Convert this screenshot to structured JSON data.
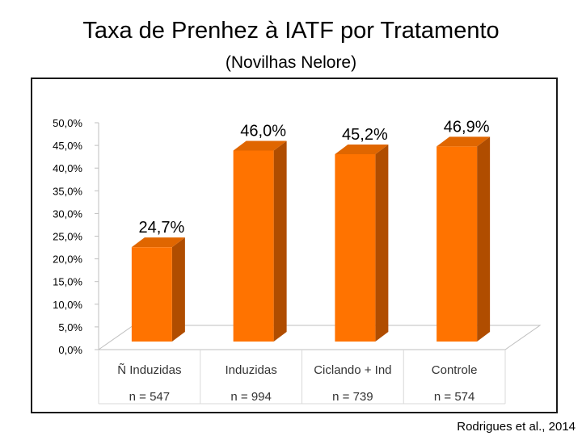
{
  "title": "Taxa de Prenhez à IATF por Tratamento",
  "subtitle": "(Novilhas Nelore)",
  "source": "Rodrigues et al., 2014",
  "chart_data": {
    "type": "bar",
    "categories": [
      "Ñ Induzidas",
      "Induzidas",
      "Ciclando + Ind",
      "Controle"
    ],
    "sample_sizes": [
      "n = 547",
      "n = 994",
      "n = 739",
      "n = 574"
    ],
    "values": [
      24.7,
      46.0,
      45.2,
      46.9
    ],
    "data_labels": [
      "24,7%",
      "46,0%",
      "45,2%",
      "46,9%"
    ],
    "ylim": [
      0,
      50
    ],
    "yticks": [
      "0,0%",
      "5,0%",
      "10,0%",
      "15,0%",
      "20,0%",
      "25,0%",
      "30,0%",
      "35,0%",
      "40,0%",
      "45,0%",
      "50,0%"
    ],
    "grid": false,
    "legend": "none",
    "colors": {
      "bar_front": "#ff7300",
      "bar_side": "#b04d00",
      "bar_top": "#e06600",
      "floor": "#bfbfbf",
      "label": "#000000"
    }
  }
}
